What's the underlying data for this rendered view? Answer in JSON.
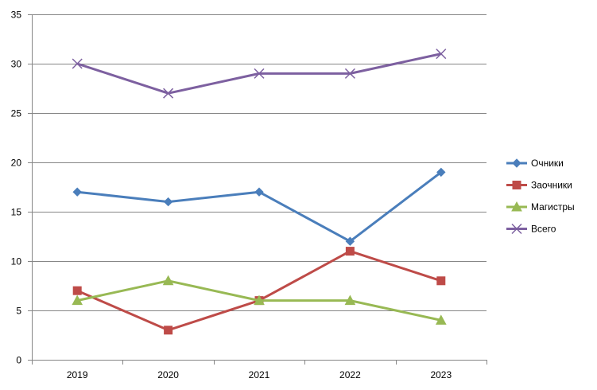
{
  "chart_data": {
    "type": "line",
    "categories": [
      "2019",
      "2020",
      "2021",
      "2022",
      "2023"
    ],
    "ylim": [
      0,
      35
    ],
    "yticks": [
      0,
      5,
      10,
      15,
      20,
      25,
      30,
      35
    ],
    "grid": true,
    "legend_position": "right",
    "series": [
      {
        "name": "Очники",
        "values": [
          17,
          16,
          17,
          12,
          19
        ],
        "color": "#4a7ebb",
        "marker": "diamond"
      },
      {
        "name": "Заочники",
        "values": [
          7,
          3,
          6,
          11,
          8
        ],
        "color": "#be4b48",
        "marker": "square"
      },
      {
        "name": "Магистры",
        "values": [
          6,
          8,
          6,
          6,
          4
        ],
        "color": "#98b954",
        "marker": "triangle"
      },
      {
        "name": "Всего",
        "values": [
          30,
          27,
          29,
          29,
          31
        ],
        "color": "#7d60a0",
        "marker": "x"
      }
    ]
  }
}
